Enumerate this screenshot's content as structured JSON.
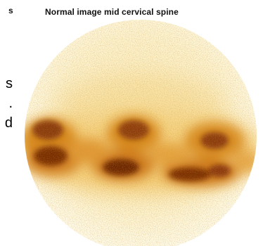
{
  "title": "Normal image mid cervical spine",
  "edge_top": "s",
  "edge_lines": [
    "s",
    ".",
    "d"
  ],
  "colors": {
    "background": "#ffffff",
    "field": "#fdf6d8",
    "uptake_low": "#f5d27a",
    "uptake_mid": "#d98a1f",
    "uptake_high": "#7a2e06"
  }
}
